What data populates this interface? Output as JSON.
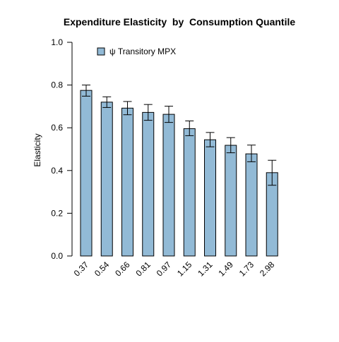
{
  "chart_data": {
    "type": "bar",
    "title": "Expenditure Elasticity  by  Consumption Quantile",
    "xlabel": "",
    "ylabel": "Elasticity",
    "ylim": [
      0,
      1
    ],
    "yticks": [
      "0.0",
      "0.2",
      "0.4",
      "0.6",
      "0.8",
      "1.0"
    ],
    "categories": [
      "0.37",
      "0.54",
      "0.66",
      "0.81",
      "0.97",
      "1.15",
      "1.31",
      "1.49",
      "1.73",
      "2.98"
    ],
    "series": [
      {
        "name": "ψ Transitory MPX",
        "values": [
          0.775,
          0.72,
          0.692,
          0.672,
          0.663,
          0.596,
          0.544,
          0.518,
          0.478,
          0.39
        ],
        "error_low": [
          0.748,
          0.695,
          0.661,
          0.635,
          0.625,
          0.563,
          0.511,
          0.483,
          0.441,
          0.331
        ],
        "error_high": [
          0.8,
          0.745,
          0.723,
          0.709,
          0.701,
          0.632,
          0.578,
          0.554,
          0.519,
          0.448
        ]
      }
    ],
    "legend_position": "top-left",
    "grid": false,
    "colors": {
      "bar_fill": "#92BAD6",
      "bar_stroke": "#000000",
      "error_bar": "#000000"
    }
  }
}
